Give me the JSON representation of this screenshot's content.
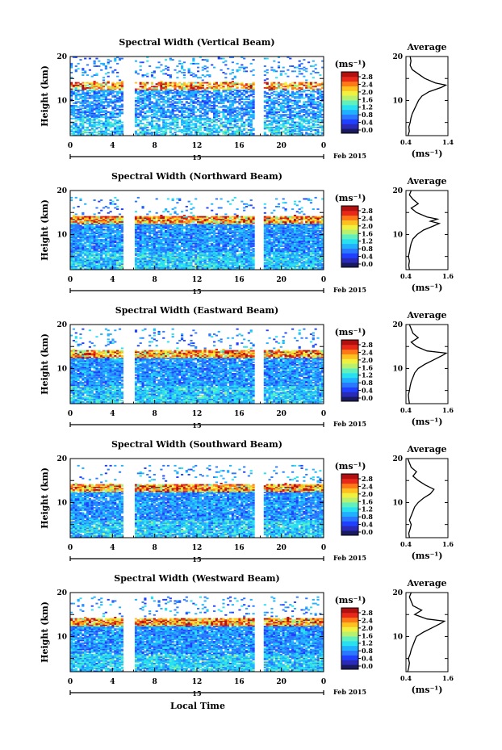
{
  "colors": {
    "scale": [
      "#1a1a60",
      "#2a2ab8",
      "#2040ff",
      "#2a78ff",
      "#20b0ff",
      "#28e0f0",
      "#60f0c0",
      "#b8f070",
      "#f0f040",
      "#ffc020",
      "#ff7818",
      "#e82818",
      "#b01010"
    ],
    "missing": "#ffffff"
  },
  "figure": {
    "xlabel": "Local Time",
    "date_label": "Feb 2015",
    "day_label": "15",
    "ylabel": "Height (km)",
    "unit_label": "(ms⁻¹)",
    "avg_title": "Average"
  },
  "chart_data": [
    {
      "type": "heatmap",
      "title": "Spectral Width (Vertical Beam)",
      "xlabel": "Local Time",
      "ylabel": "Height (km)",
      "xlim": [
        0,
        24
      ],
      "ylim": [
        2,
        20
      ],
      "xticks": [
        "0",
        "4",
        "8",
        "12",
        "16",
        "20",
        "0"
      ],
      "yticks": [
        "10",
        "20"
      ],
      "colorbar": {
        "ticks": [
          "0.0",
          "0.4",
          "0.8",
          "1.2",
          "1.6",
          "2.0",
          "2.4",
          "2.8"
        ],
        "range": [
          0,
          2.8
        ],
        "unit": "(ms⁻¹)"
      },
      "data_gaps_h": [
        [
          5.0,
          6.0
        ],
        [
          17.5,
          18.3
        ]
      ],
      "tropopause_km": 13.5,
      "data_top_km": 20,
      "dense": false,
      "average": {
        "title": "Average",
        "xlabel": "(ms⁻¹)",
        "xlim": [
          0.4,
          1.4
        ],
        "xticks": [
          "0.4",
          "1.4"
        ],
        "yticks": [
          "10",
          "20"
        ],
        "profile": {
          "height_km": [
            2,
            3,
            4,
            5,
            6,
            7,
            8,
            9,
            10,
            11,
            12,
            13,
            13.5,
            14,
            15,
            16,
            17,
            18,
            19,
            20
          ],
          "width_ms": [
            0.45,
            0.48,
            0.47,
            0.5,
            0.52,
            0.55,
            0.6,
            0.65,
            0.7,
            0.78,
            0.95,
            1.25,
            1.35,
            1.1,
            0.85,
            0.7,
            0.55,
            0.5,
            0.52,
            0.5
          ]
        }
      }
    },
    {
      "type": "heatmap",
      "title": "Spectral Width (Northward Beam)",
      "xlabel": "Local Time",
      "ylabel": "Height (km)",
      "xlim": [
        0,
        24
      ],
      "ylim": [
        2,
        20
      ],
      "xticks": [
        "0",
        "4",
        "8",
        "12",
        "16",
        "20",
        "0"
      ],
      "yticks": [
        "10",
        "20"
      ],
      "colorbar": {
        "ticks": [
          "0.0",
          "0.4",
          "0.8",
          "1.2",
          "1.6",
          "2.0",
          "2.4",
          "2.8"
        ],
        "range": [
          0,
          2.8
        ],
        "unit": "(ms⁻¹)"
      },
      "data_gaps_h": [
        [
          5.0,
          6.0
        ],
        [
          17.5,
          18.3
        ]
      ],
      "tropopause_km": 13.5,
      "data_top_km": 18.5,
      "dense": true,
      "average": {
        "title": "Average",
        "xlabel": "(ms⁻¹)",
        "xlim": [
          0.4,
          1.6
        ],
        "xticks": [
          "0.4",
          "1.6"
        ],
        "yticks": [
          "10",
          "20"
        ],
        "profile": {
          "height_km": [
            2,
            3,
            4,
            5,
            6,
            7,
            8,
            9,
            10,
            11,
            12,
            12.5,
            13,
            13.5,
            14,
            15,
            16,
            17,
            18,
            19,
            20
          ],
          "width_ms": [
            0.5,
            0.48,
            0.5,
            0.47,
            0.5,
            0.52,
            0.55,
            0.6,
            0.72,
            0.9,
            1.2,
            1.35,
            1.1,
            1.3,
            1.0,
            0.7,
            0.55,
            0.75,
            0.6,
            0.5,
            0.55
          ]
        }
      }
    },
    {
      "type": "heatmap",
      "title": "Spectral Width (Eastward Beam)",
      "xlabel": "Local Time",
      "ylabel": "Height (km)",
      "xlim": [
        0,
        24
      ],
      "ylim": [
        2,
        20
      ],
      "xticks": [
        "0",
        "4",
        "8",
        "12",
        "16",
        "20",
        "0"
      ],
      "yticks": [
        "10",
        "20"
      ],
      "colorbar": {
        "ticks": [
          "0.0",
          "0.4",
          "0.8",
          "1.2",
          "1.6",
          "2.0",
          "2.4",
          "2.8"
        ],
        "range": [
          0,
          2.8
        ],
        "unit": "(ms⁻¹)"
      },
      "data_gaps_h": [
        [
          5.0,
          6.0
        ],
        [
          17.5,
          18.3
        ]
      ],
      "tropopause_km": 13.5,
      "data_top_km": 19,
      "dense": true,
      "average": {
        "title": "Average",
        "xlabel": "(ms⁻¹)",
        "xlim": [
          0.4,
          1.6
        ],
        "xticks": [
          "0.4",
          "1.6"
        ],
        "yticks": [
          "10",
          "20"
        ],
        "profile": {
          "height_km": [
            2,
            3,
            4,
            5,
            6,
            7,
            8,
            9,
            10,
            11,
            12,
            13,
            13.5,
            14,
            15,
            16,
            17,
            18,
            19,
            20
          ],
          "width_ms": [
            0.5,
            0.48,
            0.47,
            0.5,
            0.52,
            0.55,
            0.6,
            0.65,
            0.75,
            0.95,
            1.2,
            1.45,
            1.55,
            1.0,
            0.7,
            0.55,
            0.75,
            0.6,
            0.55,
            0.5
          ]
        }
      }
    },
    {
      "type": "heatmap",
      "title": "Spectral Width (Southward Beam)",
      "xlabel": "Local Time",
      "ylabel": "Height (km)",
      "xlim": [
        0,
        24
      ],
      "ylim": [
        2,
        20
      ],
      "xticks": [
        "0",
        "4",
        "8",
        "12",
        "16",
        "20",
        "0"
      ],
      "yticks": [
        "10",
        "20"
      ],
      "colorbar": {
        "ticks": [
          "0.0",
          "0.4",
          "0.8",
          "1.2",
          "1.6",
          "2.0",
          "2.4",
          "2.8"
        ],
        "range": [
          0,
          2.8
        ],
        "unit": "(ms⁻¹)"
      },
      "data_gaps_h": [
        [
          5.0,
          6.0
        ],
        [
          17.5,
          18.3
        ]
      ],
      "tropopause_km": 13.5,
      "data_top_km": 18.5,
      "dense": true,
      "average": {
        "title": "Average",
        "xlabel": "(ms⁻¹)",
        "xlim": [
          0.4,
          1.6
        ],
        "xticks": [
          "0.4",
          "1.6"
        ],
        "yticks": [
          "10",
          "20"
        ],
        "profile": {
          "height_km": [
            2,
            3,
            4,
            5,
            6,
            7,
            8,
            9,
            10,
            11,
            12,
            13,
            14,
            15,
            16,
            17,
            18,
            19,
            20
          ],
          "width_ms": [
            0.5,
            0.48,
            0.52,
            0.55,
            0.5,
            0.55,
            0.6,
            0.65,
            0.75,
            0.9,
            1.1,
            1.2,
            0.95,
            0.75,
            0.6,
            0.7,
            0.55,
            0.5,
            0.45
          ]
        }
      }
    },
    {
      "type": "heatmap",
      "title": "Spectral Width (Westward Beam)",
      "xlabel": "Local Time",
      "ylabel": "Height (km)",
      "xlim": [
        0,
        24
      ],
      "ylim": [
        2,
        20
      ],
      "xticks": [
        "0",
        "4",
        "8",
        "12",
        "16",
        "20",
        "0"
      ],
      "yticks": [
        "10",
        "20"
      ],
      "colorbar": {
        "ticks": [
          "0.0",
          "0.4",
          "0.8",
          "1.2",
          "1.6",
          "2.0",
          "2.4",
          "2.8"
        ],
        "range": [
          0,
          2.8
        ],
        "unit": "(ms⁻¹)"
      },
      "data_gaps_h": [
        [
          5.0,
          6.0
        ],
        [
          17.5,
          18.3
        ]
      ],
      "tropopause_km": 13.5,
      "data_top_km": 19,
      "dense": true,
      "average": {
        "title": "Average",
        "xlabel": "(ms⁻¹)",
        "xlim": [
          0.4,
          1.6
        ],
        "xticks": [
          "0.4",
          "1.6"
        ],
        "yticks": [
          "10",
          "20"
        ],
        "profile": {
          "height_km": [
            2,
            3,
            4,
            5,
            6,
            7,
            8,
            9,
            10,
            11,
            12,
            13,
            13.5,
            14,
            15,
            16,
            17,
            18,
            19,
            20
          ],
          "width_ms": [
            0.45,
            0.48,
            0.5,
            0.47,
            0.52,
            0.55,
            0.6,
            0.65,
            0.7,
            0.9,
            1.15,
            1.4,
            1.5,
            1.0,
            0.65,
            0.85,
            0.6,
            0.55,
            0.5,
            0.55
          ]
        }
      }
    }
  ]
}
